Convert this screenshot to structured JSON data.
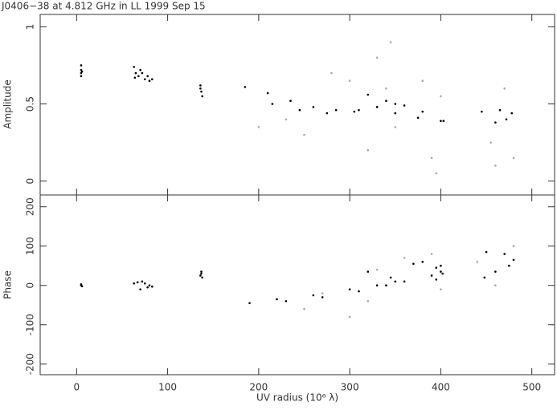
{
  "chart_data": [
    {
      "type": "scatter",
      "title": "J0406−38 at 4.812 GHz in LL  1999 Sep 15",
      "ylabel": "Amplitude",
      "xlim": [
        -40,
        525
      ],
      "xticks": [
        0,
        100,
        200,
        300,
        400,
        500
      ],
      "ylim": [
        -0.09,
        1.08
      ],
      "yticks": [
        0,
        0.5,
        1
      ],
      "series": [
        {
          "color": "#000000",
          "x": [
            5,
            5,
            5,
            6,
            5,
            63,
            65,
            68,
            72,
            75,
            78,
            80,
            83,
            64,
            70,
            136,
            137,
            138,
            136,
            185,
            210,
            235,
            260,
            285,
            310,
            330,
            350,
            215,
            245,
            275,
            305,
            330,
            320,
            340,
            360,
            380,
            400,
            350,
            375,
            403,
            445,
            465,
            478,
            472,
            460
          ],
          "values": [
            0.72,
            0.7,
            0.68,
            0.71,
            0.75,
            0.74,
            0.7,
            0.68,
            0.7,
            0.66,
            0.68,
            0.65,
            0.66,
            0.67,
            0.72,
            0.62,
            0.58,
            0.55,
            0.6,
            0.61,
            0.57,
            0.52,
            0.48,
            0.46,
            0.46,
            0.48,
            0.5,
            0.5,
            0.46,
            0.44,
            0.45,
            0.48,
            0.56,
            0.52,
            0.49,
            0.45,
            0.39,
            0.44,
            0.41,
            0.39,
            0.45,
            0.46,
            0.44,
            0.4,
            0.38
          ]
        },
        {
          "color": "#aaaaaa",
          "x": [
            200,
            250,
            300,
            330,
            345,
            320,
            390,
            380,
            400,
            455,
            470,
            480,
            350,
            280,
            230,
            340,
            395,
            460
          ],
          "values": [
            0.35,
            0.3,
            0.65,
            0.8,
            0.9,
            0.2,
            0.15,
            0.65,
            0.55,
            0.25,
            0.6,
            0.15,
            0.35,
            0.7,
            0.4,
            0.6,
            0.05,
            0.1
          ]
        }
      ]
    },
    {
      "type": "scatter",
      "xlabel": "UV radius  (10⁶ λ)",
      "ylabel": "Phase",
      "xlim": [
        -40,
        525
      ],
      "xticks": [
        0,
        100,
        200,
        300,
        400,
        500
      ],
      "ylim": [
        -227,
        230
      ],
      "yticks": [
        -200,
        -100,
        0,
        100,
        200
      ],
      "series": [
        {
          "color": "#000000",
          "x": [
            5,
            5,
            6,
            63,
            67,
            72,
            75,
            78,
            80,
            83,
            70,
            136,
            137,
            138,
            137,
            190,
            230,
            270,
            310,
            340,
            350,
            345,
            320,
            220,
            260,
            300,
            330,
            360,
            390,
            400,
            395,
            370,
            380,
            400,
            402,
            395,
            450,
            470,
            480,
            475,
            460,
            448
          ],
          "values": [
            0,
            3,
            -2,
            5,
            8,
            10,
            5,
            -5,
            0,
            -3,
            -10,
            25,
            35,
            20,
            30,
            -45,
            -40,
            -30,
            -15,
            0,
            10,
            20,
            35,
            -35,
            -25,
            -10,
            0,
            10,
            25,
            35,
            45,
            55,
            60,
            50,
            30,
            15,
            85,
            80,
            65,
            50,
            35,
            20
          ]
        },
        {
          "color": "#aaaaaa",
          "x": [
            250,
            300,
            320,
            360,
            390,
            480,
            440,
            270,
            330,
            400,
            460
          ],
          "values": [
            -60,
            -80,
            -40,
            70,
            80,
            100,
            60,
            -20,
            40,
            -10,
            0
          ]
        }
      ]
    }
  ]
}
